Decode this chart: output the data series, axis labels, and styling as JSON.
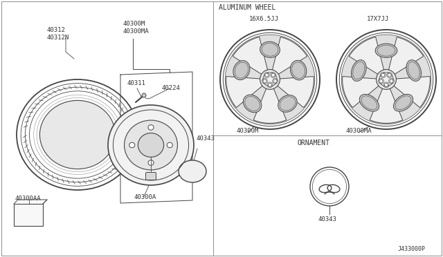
{
  "bg_color": "#ffffff",
  "line_color": "#444444",
  "text_color": "#333333",
  "section_aluminum_label": "ALUMINUM WHEEL",
  "section_ornament_label": "ORNAMENT",
  "diagram_code": "J433000P",
  "parts": {
    "tire_label": [
      "40312",
      "40312N"
    ],
    "hub_labels": [
      "40300M",
      "40300MA"
    ],
    "stem_label": "40311",
    "valve_label": "40224",
    "cap_label": "40343",
    "lug_label": "40300A",
    "spare_label": "40300AA",
    "wheel1_label": "40300M",
    "wheel1_size": "16X6.5JJ",
    "wheel2_label": "40300MA",
    "wheel2_size": "17X7JJ",
    "ornament_label": "40343"
  },
  "figsize": [
    6.4,
    3.72
  ],
  "dpi": 100
}
